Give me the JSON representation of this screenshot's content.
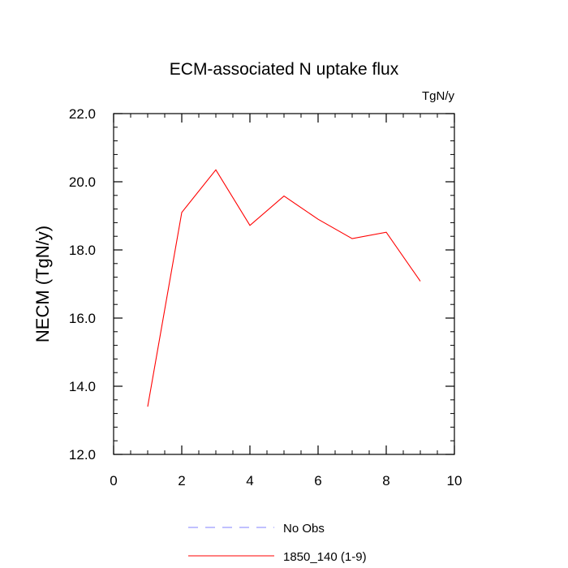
{
  "chart_data": {
    "type": "line",
    "title": "ECM-associated N uptake flux",
    "units_label": "TgN/y",
    "ylabel": "NECM  (TgN/y)",
    "xlabel": "",
    "xlim": [
      0,
      10
    ],
    "ylim": [
      12,
      22
    ],
    "x_ticks": [
      0,
      2,
      4,
      6,
      8,
      10
    ],
    "x_tick_labels": [
      "0",
      "2",
      "4",
      "6",
      "8",
      "10"
    ],
    "y_ticks": [
      12,
      14,
      16,
      18,
      20,
      22
    ],
    "y_tick_labels": [
      "12.0",
      "14.0",
      "16.0",
      "18.0",
      "20.0",
      "22.0"
    ],
    "grid": false,
    "legend_position": "bottom",
    "series": [
      {
        "name": "No Obs",
        "color": "#8080ff",
        "dash": "dashed",
        "x": [],
        "y": []
      },
      {
        "name": "1850_140 (1-9)",
        "color": "#ff0000",
        "dash": "solid",
        "x": [
          1,
          2,
          3,
          4,
          5,
          6,
          7,
          8,
          9
        ],
        "y": [
          13.4,
          19.1,
          20.35,
          18.72,
          19.58,
          18.9,
          18.33,
          18.52,
          17.08
        ]
      }
    ]
  }
}
